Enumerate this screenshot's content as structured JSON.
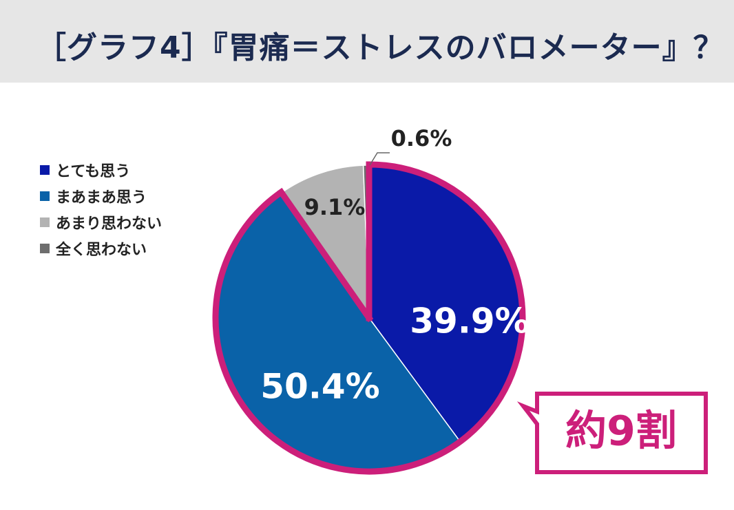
{
  "title": "［グラフ4］『胃痛＝ストレスのバロメーター』？",
  "colors": {
    "title_band": "#e6e6e6",
    "highlight": "#cc1f7a"
  },
  "legend": [
    {
      "label": "とても思う",
      "color": "#0a1aa8"
    },
    {
      "label": "まあまあ思う",
      "color": "#0a62a8"
    },
    {
      "label": "あまり思わない",
      "color": "#b3b3b3"
    },
    {
      "label": "全く思わない",
      "color": "#6e6e6e"
    }
  ],
  "callout": {
    "label": "約9割"
  },
  "chart_data": {
    "type": "pie",
    "categories": [
      "とても思う",
      "まあまあ思う",
      "あまり思わない",
      "全く思わない"
    ],
    "values": [
      39.9,
      50.4,
      9.1,
      0.6
    ],
    "data_labels": [
      "39.9%",
      "50.4%",
      "9.1%",
      "0.6%"
    ],
    "colors": [
      "#0a1aa8",
      "#0a62a8",
      "#b3b3b3",
      "#6e6e6e"
    ],
    "highlighted_categories": [
      "とても思う",
      "まあまあ思う"
    ],
    "legend_position": "left",
    "start": "12 o'clock",
    "direction": "clockwise"
  }
}
